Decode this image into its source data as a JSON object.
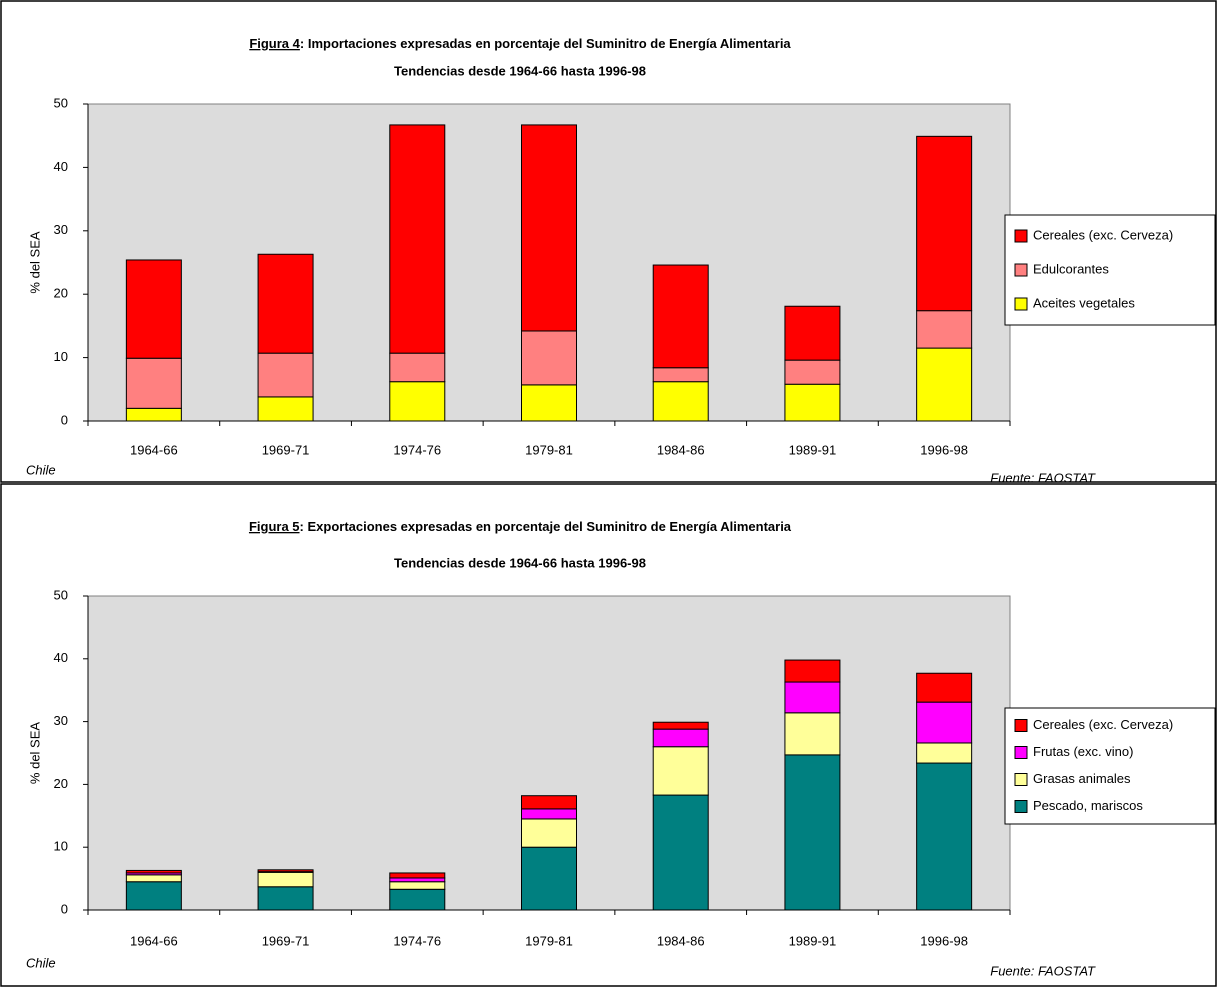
{
  "chart_data": [
    {
      "type": "bar",
      "stacked": true,
      "title_prefix": "Figura 4",
      "title": ": Importaciones expresadas en porcentaje del Suminitro de Energía Alimentaria",
      "subtitle": "Tendencias desde 1964-66 hasta 1996-98",
      "y_label": "% del SEA",
      "note": "Chile",
      "source": "Fuente: FAOSTAT",
      "categories": [
        "1964-66",
        "1969-71",
        "1974-76",
        "1979-81",
        "1984-86",
        "1989-91",
        "1996-98"
      ],
      "series": [
        {
          "name": "Aceites vegetales",
          "color": "#ffff00",
          "values": [
            2.0,
            3.8,
            6.2,
            5.7,
            6.2,
            5.8,
            11.5
          ]
        },
        {
          "name": "Edulcorantes",
          "color": "#ff8080",
          "values": [
            7.9,
            6.9,
            4.5,
            8.5,
            2.2,
            3.8,
            5.9
          ]
        },
        {
          "name": "Cereales (exc. Cerveza)",
          "color": "#ff0000",
          "values": [
            15.5,
            15.6,
            36.0,
            32.5,
            16.2,
            8.5,
            27.5
          ]
        }
      ],
      "ylim": [
        0,
        50
      ],
      "yticks": [
        0,
        10,
        20,
        30,
        40,
        50
      ],
      "plot_background": "#dcdcdc"
    },
    {
      "type": "bar",
      "stacked": true,
      "title_prefix": "Figura 5",
      "title": ":  Exportaciones expresadas en porcentaje del Suminitro de Energía Alimentaria",
      "subtitle": "Tendencias desde 1964-66 hasta 1996-98",
      "y_label": "% del SEA",
      "note": "Chile",
      "source": "Fuente: FAOSTAT",
      "categories": [
        "1964-66",
        "1969-71",
        "1974-76",
        "1979-81",
        "1984-86",
        "1989-91",
        "1996-98"
      ],
      "series": [
        {
          "name": "Pescado, mariscos",
          "color": "#008080",
          "values": [
            4.5,
            3.7,
            3.3,
            10.0,
            18.3,
            24.7,
            23.4
          ]
        },
        {
          "name": "Grasas animales",
          "color": "#ffff99",
          "values": [
            1.1,
            2.3,
            1.2,
            4.5,
            7.7,
            6.7,
            3.2
          ]
        },
        {
          "name": "Frutas (exc. vino)",
          "color": "#ff00ff",
          "values": [
            0.3,
            0.1,
            0.6,
            1.6,
            2.8,
            4.9,
            6.5
          ]
        },
        {
          "name": "Cereales (exc. Cerveza)",
          "color": "#ff0000",
          "values": [
            0.4,
            0.3,
            0.8,
            2.1,
            1.1,
            3.5,
            4.6
          ]
        }
      ],
      "ylim": [
        0,
        50
      ],
      "yticks": [
        0,
        10,
        20,
        30,
        40,
        50
      ],
      "plot_background": "#dcdcdc"
    }
  ]
}
